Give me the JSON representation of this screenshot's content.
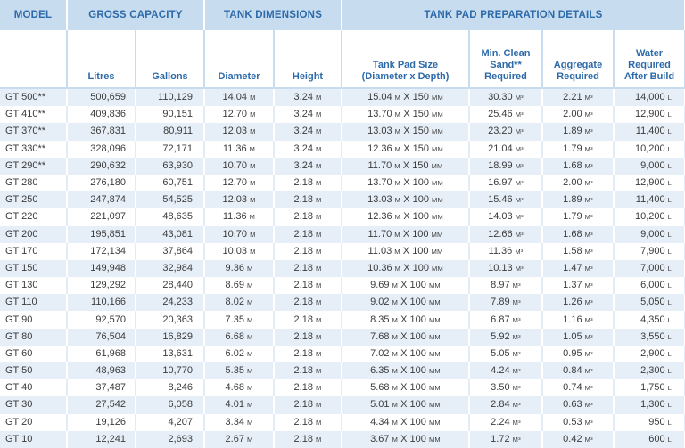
{
  "header": {
    "model": "MODEL",
    "gross_capacity": "GROSS CAPACITY",
    "tank_dimensions": "TANK DIMENSIONS",
    "tank_pad": "TANK PAD PREPARATION DETAILS"
  },
  "subheader": {
    "litres": "Litres",
    "gallons": "Gallons",
    "diameter": "Diameter",
    "height": "Height",
    "pad_size_l1": "Tank Pad Size",
    "pad_size_l2": "(Diameter x Depth)",
    "sand_l1": "Min. Clean",
    "sand_l2": "Sand**",
    "sand_l3": "Required",
    "agg_l1": "Aggregate",
    "agg_l2": "Required",
    "water_l1": "Water",
    "water_l2": "Required",
    "water_l3": "After Build"
  },
  "units": {
    "metre": "M",
    "millimetre": "MM",
    "cubic_metre": "M³",
    "litre": "L",
    "times": "X"
  },
  "colors": {
    "header_bg": "#c7dcef",
    "header_text": "#2d6aaa",
    "stripe": "#e6eff8",
    "body_text": "#3b3b3b"
  },
  "rows": [
    {
      "model": "GT 500**",
      "litres": "500,659",
      "gallons": "110,129",
      "diameter": "14.04",
      "height": "3.24",
      "pad_d": "15.04",
      "pad_depth": "150",
      "sand": "30.30",
      "aggregate": "2.21",
      "water": "14,000"
    },
    {
      "model": "GT 410**",
      "litres": "409,836",
      "gallons": "90,151",
      "diameter": "12.70",
      "height": "3.24",
      "pad_d": "13.70",
      "pad_depth": "150",
      "sand": "25.46",
      "aggregate": "2.00",
      "water": "12,900"
    },
    {
      "model": "GT 370**",
      "litres": "367,831",
      "gallons": "80,911",
      "diameter": "12.03",
      "height": "3.24",
      "pad_d": "13.03",
      "pad_depth": "150",
      "sand": "23.20",
      "aggregate": "1.89",
      "water": "11,400"
    },
    {
      "model": "GT 330**",
      "litres": "328,096",
      "gallons": "72,171",
      "diameter": "11.36",
      "height": "3.24",
      "pad_d": "12.36",
      "pad_depth": "150",
      "sand": "21.04",
      "aggregate": "1.79",
      "water": "10,200"
    },
    {
      "model": "GT 290**",
      "litres": "290,632",
      "gallons": "63,930",
      "diameter": "10.70",
      "height": "3.24",
      "pad_d": "11.70",
      "pad_depth": "150",
      "sand": "18.99",
      "aggregate": "1.68",
      "water": "9,000"
    },
    {
      "model": "GT 280",
      "litres": "276,180",
      "gallons": "60,751",
      "diameter": "12.70",
      "height": "2.18",
      "pad_d": "13.70",
      "pad_depth": "100",
      "sand": "16.97",
      "aggregate": "2.00",
      "water": "12,900"
    },
    {
      "model": "GT 250",
      "litres": "247,874",
      "gallons": "54,525",
      "diameter": "12.03",
      "height": "2.18",
      "pad_d": "13.03",
      "pad_depth": "100",
      "sand": "15.46",
      "aggregate": "1.89",
      "water": "11,400"
    },
    {
      "model": "GT 220",
      "litres": "221,097",
      "gallons": "48,635",
      "diameter": "11.36",
      "height": "2.18",
      "pad_d": "12.36",
      "pad_depth": "100",
      "sand": "14.03",
      "aggregate": "1.79",
      "water": "10,200"
    },
    {
      "model": "GT 200",
      "litres": "195,851",
      "gallons": "43,081",
      "diameter": "10.70",
      "height": "2.18",
      "pad_d": "11.70",
      "pad_depth": "100",
      "sand": "12.66",
      "aggregate": "1.68",
      "water": "9,000"
    },
    {
      "model": "GT 170",
      "litres": "172,134",
      "gallons": "37,864",
      "diameter": "10.03",
      "height": "2.18",
      "pad_d": "11.03",
      "pad_depth": "100",
      "sand": "11.36",
      "aggregate": "1.58",
      "water": "7,900"
    },
    {
      "model": "GT 150",
      "litres": "149,948",
      "gallons": "32,984",
      "diameter": "9.36",
      "height": "2.18",
      "pad_d": "10.36",
      "pad_depth": "100",
      "sand": "10.13",
      "aggregate": "1.47",
      "water": "7,000"
    },
    {
      "model": "GT 130",
      "litres": "129,292",
      "gallons": "28,440",
      "diameter": "8.69",
      "height": "2.18",
      "pad_d": "9.69",
      "pad_depth": "100",
      "sand": "8.97",
      "aggregate": "1.37",
      "water": "6,000"
    },
    {
      "model": "GT 110",
      "litres": "110,166",
      "gallons": "24,233",
      "diameter": "8.02",
      "height": "2.18",
      "pad_d": "9.02",
      "pad_depth": "100",
      "sand": "7.89",
      "aggregate": "1.26",
      "water": "5,050"
    },
    {
      "model": "GT 90",
      "litres": "92,570",
      "gallons": "20,363",
      "diameter": "7.35",
      "height": "2.18",
      "pad_d": "8.35",
      "pad_depth": "100",
      "sand": "6.87",
      "aggregate": "1.16",
      "water": "4,350"
    },
    {
      "model": "GT 80",
      "litres": "76,504",
      "gallons": "16,829",
      "diameter": "6.68",
      "height": "2.18",
      "pad_d": "7.68",
      "pad_depth": "100",
      "sand": "5.92",
      "aggregate": "1.05",
      "water": "3,550"
    },
    {
      "model": "GT 60",
      "litres": "61,968",
      "gallons": "13,631",
      "diameter": "6.02",
      "height": "2.18",
      "pad_d": "7.02",
      "pad_depth": "100",
      "sand": "5.05",
      "aggregate": "0.95",
      "water": "2,900"
    },
    {
      "model": "GT 50",
      "litres": "48,963",
      "gallons": "10,770",
      "diameter": "5.35",
      "height": "2.18",
      "pad_d": "6.35",
      "pad_depth": "100",
      "sand": "4.24",
      "aggregate": "0.84",
      "water": "2,300"
    },
    {
      "model": "GT 40",
      "litres": "37,487",
      "gallons": "8,246",
      "diameter": "4.68",
      "height": "2.18",
      "pad_d": "5.68",
      "pad_depth": "100",
      "sand": "3.50",
      "aggregate": "0.74",
      "water": "1,750"
    },
    {
      "model": "GT 30",
      "litres": "27,542",
      "gallons": "6,058",
      "diameter": "4.01",
      "height": "2.18",
      "pad_d": "5.01",
      "pad_depth": "100",
      "sand": "2.84",
      "aggregate": "0.63",
      "water": "1,300"
    },
    {
      "model": "GT 20",
      "litres": "19,126",
      "gallons": "4,207",
      "diameter": "3.34",
      "height": "2.18",
      "pad_d": "4.34",
      "pad_depth": "100",
      "sand": "2.24",
      "aggregate": "0.53",
      "water": "950"
    },
    {
      "model": "GT 10",
      "litres": "12,241",
      "gallons": "2,693",
      "diameter": "2.67",
      "height": "2.18",
      "pad_d": "3.67",
      "pad_depth": "100",
      "sand": "1.72",
      "aggregate": "0.42",
      "water": "600"
    }
  ]
}
